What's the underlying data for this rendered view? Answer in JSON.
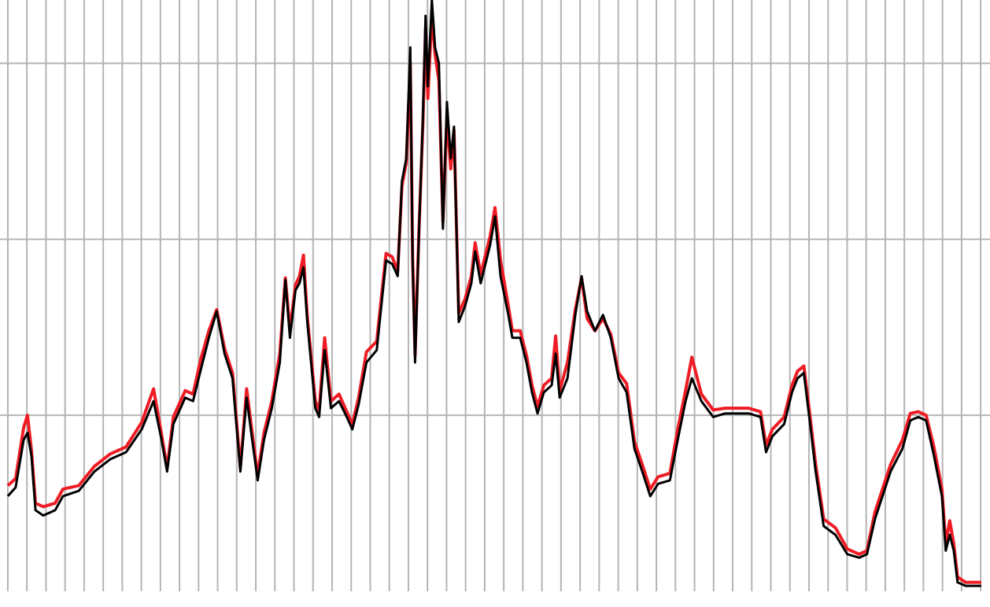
{
  "chart_data": {
    "type": "line",
    "x": [
      0.0,
      0.41,
      0.83,
      1.03,
      1.24,
      1.45,
      1.86,
      2.48,
      2.89,
      3.72,
      4.54,
      5.37,
      6.2,
      7.02,
      7.64,
      8.06,
      8.35,
      8.68,
      9.3,
      9.71,
      10.12,
      10.54,
      10.95,
      11.36,
      11.78,
      12.19,
      12.52,
      12.81,
      13.1,
      13.43,
      13.84,
      14.26,
      14.55,
      14.79,
      15.08,
      15.29,
      15.5,
      15.7,
      16.12,
      16.32,
      16.61,
      16.94,
      17.36,
      17.77,
      18.06,
      18.39,
      18.8,
      19.34,
      19.83,
      20.15,
      20.44,
      20.66,
      20.89,
      21.1,
      21.22,
      21.35,
      21.55,
      21.76,
      21.9,
      22.02,
      22.23,
      22.4,
      22.6,
      22.81,
      23.02,
      23.22,
      23.39,
      23.64,
      23.97,
      24.3,
      24.5,
      24.79,
      25.29,
      25.54,
      25.83,
      26.24,
      26.45,
      26.86,
      27.19,
      27.48,
      27.77,
      28.1,
      28.51,
      28.72,
      28.93,
      29.34,
      29.75,
      30.08,
      30.37,
      30.78,
      31.2,
      31.61,
      32.02,
      32.44,
      32.85,
      33.26,
      33.68,
      34.09,
      34.71,
      35.12,
      35.53,
      35.86,
      36.36,
      36.98,
      37.61,
      38.23,
      38.84,
      39.46,
      39.75,
      40.08,
      40.7,
      41.11,
      41.4,
      41.73,
      42.06,
      42.35,
      42.77,
      43.39,
      44.01,
      44.63,
      45.04,
      45.46,
      46.28,
      46.9,
      47.31,
      47.73,
      48.14,
      48.55,
      48.97,
      49.17,
      49.38,
      49.59,
      49.79,
      50.21,
      51.03
    ],
    "series": [
      {
        "color": "#ee1c25",
        "values": [
          0.6,
          0.64,
          0.93,
          1.0,
          0.8,
          0.5,
          0.48,
          0.5,
          0.58,
          0.6,
          0.71,
          0.78,
          0.82,
          0.96,
          1.15,
          0.89,
          0.7,
          0.99,
          1.14,
          1.12,
          1.32,
          1.48,
          1.6,
          1.38,
          1.24,
          0.7,
          1.15,
          0.9,
          0.66,
          0.9,
          1.08,
          1.35,
          1.78,
          1.48,
          1.74,
          1.79,
          1.91,
          1.56,
          1.08,
          1.03,
          1.44,
          1.08,
          1.12,
          1.02,
          0.95,
          1.1,
          1.36,
          1.42,
          1.92,
          1.9,
          1.82,
          2.3,
          2.44,
          3.0,
          1.9,
          1.34,
          2.04,
          2.66,
          3.2,
          2.8,
          3.28,
          3.05,
          2.9,
          2.1,
          2.7,
          2.4,
          2.62,
          1.58,
          1.66,
          1.79,
          1.98,
          1.8,
          2.02,
          2.18,
          1.88,
          1.62,
          1.48,
          1.48,
          1.34,
          1.17,
          1.05,
          1.17,
          1.21,
          1.45,
          1.14,
          1.3,
          1.6,
          1.78,
          1.55,
          1.48,
          1.55,
          1.46,
          1.24,
          1.18,
          0.85,
          0.72,
          0.58,
          0.65,
          0.67,
          0.92,
          1.14,
          1.33,
          1.12,
          1.03,
          1.04,
          1.04,
          1.04,
          1.02,
          0.83,
          0.92,
          0.99,
          1.17,
          1.25,
          1.28,
          0.99,
          0.72,
          0.41,
          0.36,
          0.24,
          0.21,
          0.23,
          0.45,
          0.72,
          0.86,
          1.01,
          1.02,
          1.0,
          0.82,
          0.58,
          0.27,
          0.4,
          0.27,
          0.08,
          0.05,
          0.05
        ]
      },
      {
        "color": "#000000",
        "values": [
          0.54,
          0.59,
          0.86,
          0.9,
          0.77,
          0.46,
          0.43,
          0.46,
          0.54,
          0.57,
          0.68,
          0.75,
          0.79,
          0.92,
          1.08,
          0.86,
          0.68,
          0.95,
          1.1,
          1.08,
          1.26,
          1.44,
          1.59,
          1.35,
          1.21,
          0.68,
          1.1,
          0.86,
          0.63,
          0.86,
          1.04,
          1.3,
          1.77,
          1.44,
          1.71,
          1.75,
          1.84,
          1.53,
          1.04,
          0.99,
          1.37,
          1.04,
          1.08,
          0.99,
          0.92,
          1.06,
          1.3,
          1.37,
          1.88,
          1.86,
          1.79,
          2.33,
          2.46,
          3.09,
          1.88,
          1.3,
          2.02,
          2.69,
          3.27,
          2.87,
          3.36,
          3.09,
          3.0,
          2.06,
          2.78,
          2.46,
          2.64,
          1.53,
          1.62,
          1.75,
          1.93,
          1.75,
          1.97,
          2.13,
          1.79,
          1.57,
          1.44,
          1.44,
          1.3,
          1.13,
          1.01,
          1.13,
          1.17,
          1.35,
          1.1,
          1.21,
          1.57,
          1.79,
          1.59,
          1.48,
          1.57,
          1.44,
          1.21,
          1.13,
          0.81,
          0.68,
          0.54,
          0.61,
          0.63,
          0.86,
          1.08,
          1.21,
          1.08,
          0.99,
          1.01,
          1.01,
          1.01,
          0.99,
          0.79,
          0.88,
          0.95,
          1.13,
          1.21,
          1.24,
          0.95,
          0.68,
          0.37,
          0.32,
          0.21,
          0.19,
          0.21,
          0.41,
          0.68,
          0.81,
          0.97,
          0.99,
          0.97,
          0.77,
          0.54,
          0.23,
          0.32,
          0.23,
          0.05,
          0.03,
          0.03
        ]
      }
    ],
    "xlim": [
      -0.41,
      51.49
    ],
    "xticks": [
      0,
      1,
      2,
      3,
      4,
      5,
      6,
      7,
      8,
      9,
      10,
      11,
      12,
      13,
      14,
      15,
      16,
      17,
      18,
      19,
      20,
      21,
      22,
      23,
      24,
      25,
      26,
      27,
      28,
      29,
      30,
      31,
      32,
      33,
      34,
      35,
      36,
      37,
      38,
      39,
      40,
      41,
      42,
      43,
      44,
      45,
      46,
      47,
      48,
      49,
      50,
      51
    ],
    "ylim": [
      -0.09,
      3.36
    ],
    "yticks": [
      1,
      2,
      3
    ],
    "grid": true
  }
}
